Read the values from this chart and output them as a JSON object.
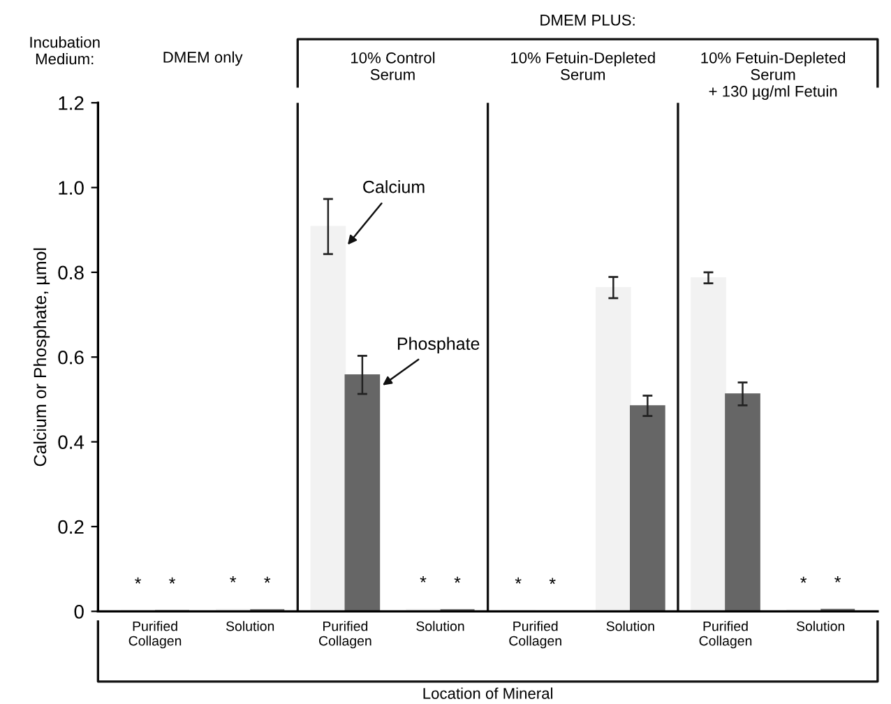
{
  "chart_data": {
    "type": "bar",
    "xlabel": "Location of Mineral",
    "ylabel": "Calcium or Phosphate, µmol",
    "categories": [
      "Purified\nCollagen",
      "Solution",
      "Purified\nCollagen",
      "Solution",
      "Purified\nCollagen",
      "Solution",
      "Purified\nCollagen",
      "Solution"
    ],
    "series": [
      {
        "name": "Calcium",
        "color": "#f2f2f2",
        "values": [
          0.003,
          0.006,
          0.908,
          0.006,
          0.003,
          0.764,
          0.787,
          0.005
        ],
        "errors": [
          null,
          null,
          0.065,
          null,
          null,
          0.025,
          0.013,
          null
        ],
        "value_labels": [
          "*",
          "*",
          null,
          "*",
          "*",
          null,
          null,
          "*"
        ]
      },
      {
        "name": "Phosphate",
        "color": "#666666",
        "values": [
          0.003,
          0.005,
          0.558,
          0.005,
          0.002,
          0.485,
          0.513,
          0.006
        ],
        "errors": [
          null,
          null,
          0.045,
          null,
          null,
          0.024,
          0.027,
          null
        ],
        "value_labels": [
          "*",
          "*",
          null,
          "*",
          "*",
          null,
          null,
          "*"
        ]
      }
    ],
    "ylim": [
      0,
      1.2
    ],
    "yticks": [
      0,
      0.2,
      0.4,
      0.6,
      0.8,
      {
        "value": 1,
        "label": "1.0"
      },
      1.2
    ],
    "annotations": [
      "Incubation\nMedium:",
      "DMEM only",
      "10% Control\nSerum",
      "10% Fetuin-Depleted\nSerum",
      "10% Fetuin-Depleted\nSerum\n+ 130 µg/ml Fetuin",
      "DMEM PLUS:"
    ],
    "grid": false,
    "legend": false
  }
}
